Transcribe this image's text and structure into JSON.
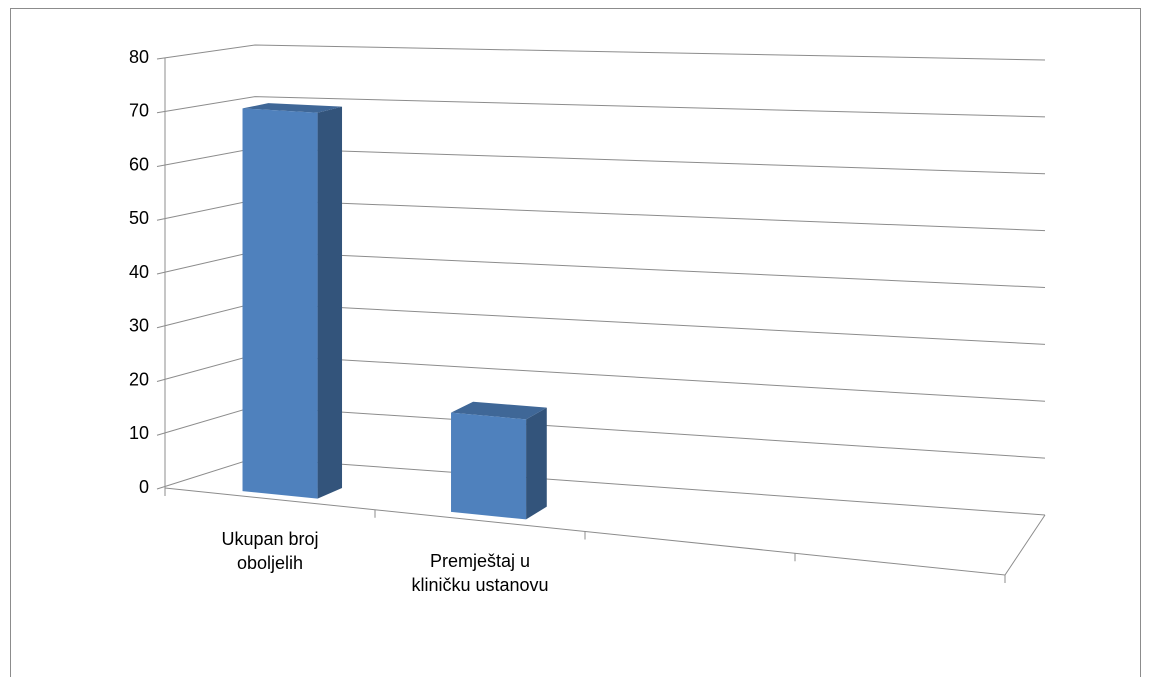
{
  "chart_data": {
    "type": "bar3d",
    "categories": [
      "Ukupan broj oboljelih",
      "Premještaj u kliničku ustanovu",
      null,
      null
    ],
    "values": [
      71,
      18,
      null,
      null
    ],
    "color": "#4f81bd",
    "ylim": [
      0,
      80
    ],
    "yticks": [
      0,
      10,
      20,
      30,
      40,
      50,
      60,
      70,
      80
    ],
    "grid": true
  }
}
